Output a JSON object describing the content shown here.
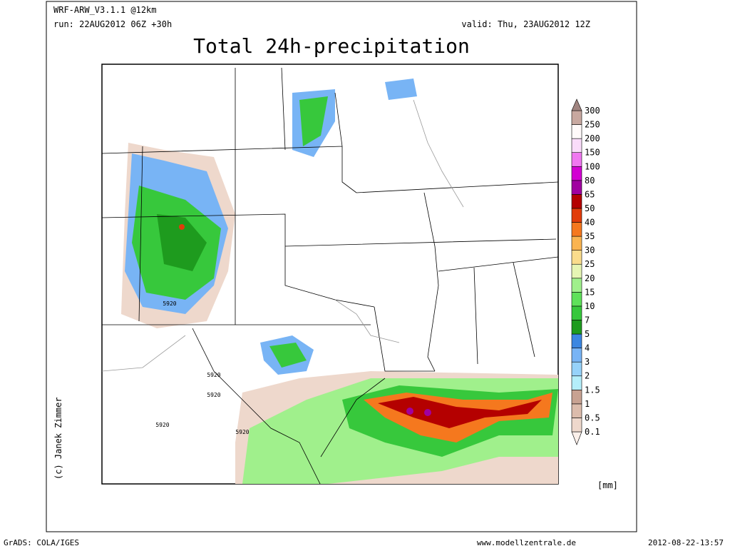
{
  "header": {
    "model": "WRF-ARW_V3.1.1 @12km",
    "run": "run: 22AUG2012 06Z +30h",
    "valid": "valid: Thu, 23AUG2012 12Z",
    "title": "Total 24h-precipitation"
  },
  "legend": {
    "levels": [
      0.1,
      0.5,
      1,
      1.5,
      2,
      3,
      4,
      5,
      7,
      10,
      15,
      20,
      25,
      30,
      35,
      40,
      50,
      65,
      80,
      100,
      150,
      200,
      250,
      300
    ],
    "colors": [
      "#fbf0ea",
      "#eed8cc",
      "#dcbcac",
      "#c8a292",
      "#b4eefa",
      "#96d2fa",
      "#78b4f5",
      "#3c87e1",
      "#1e9b1e",
      "#37c83c",
      "#5fe15a",
      "#a0f08c",
      "#e6f5b4",
      "#fadc8c",
      "#fab450",
      "#f5781e",
      "#e13c0a",
      "#b40000",
      "#a000a0",
      "#d200d2",
      "#f078f0",
      "#fadcfa",
      "#fffafa",
      "#c8a8a0",
      "#a08480"
    ],
    "unit": "[mm]"
  },
  "map": {
    "contour_labels": [
      "5920",
      "5920",
      "5920",
      "5920",
      "5920"
    ]
  },
  "credit": "(c) Janek Zimmer",
  "footer": {
    "software": "GrADS: COLA/IGES",
    "site": "www.modellzentrale.de",
    "timestamp": "2012-08-22-13:57"
  }
}
